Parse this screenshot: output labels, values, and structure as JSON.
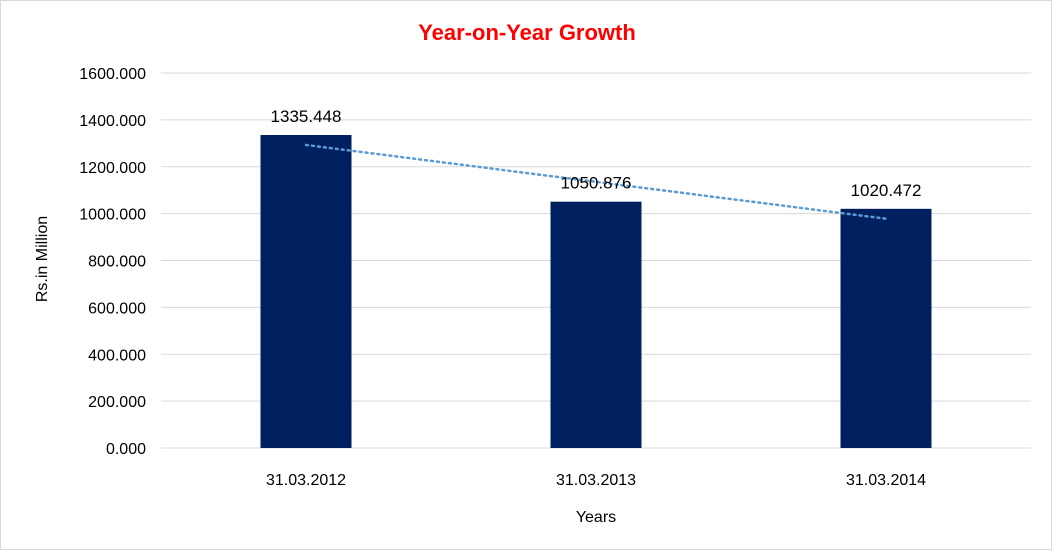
{
  "chart_data": {
    "type": "bar",
    "title": "Year-on-Year Growth",
    "xlabel": "Years",
    "ylabel": "Rs.in Million",
    "categories": [
      "31.03.2012",
      "31.03.2013",
      "31.03.2014"
    ],
    "values": [
      1335.448,
      1050.876,
      1020.472
    ],
    "data_labels": [
      "1335.448",
      "1050.876",
      "1020.472"
    ],
    "ylim": [
      0,
      1600
    ],
    "ytick_values": [
      0,
      200,
      400,
      600,
      800,
      1000,
      1200,
      1400,
      1600
    ],
    "ytick_labels": [
      "0.000",
      "200.000",
      "400.000",
      "600.000",
      "800.000",
      "1000.000",
      "1200.000",
      "1400.000",
      "1600.000"
    ],
    "grid": true,
    "legend": "none",
    "trendline": {
      "type": "linear",
      "style": "dotted"
    },
    "colors": {
      "bar": "#002060",
      "trendline": "#5b9bd5",
      "title": "#ff0000",
      "grid": "#d9d9d9"
    }
  }
}
